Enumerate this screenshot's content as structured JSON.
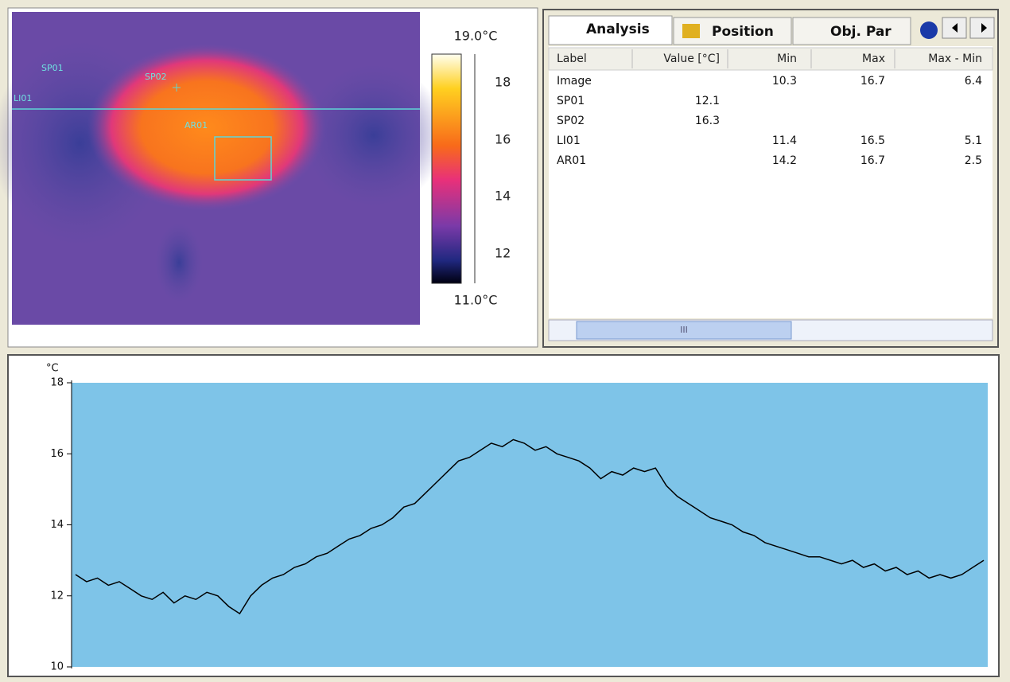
{
  "image_panel": {
    "spots": [
      "SP01",
      "SP02",
      "LI01",
      "AR01"
    ],
    "colorbar": {
      "max_label": "19.0°C",
      "min_label": "11.0°C",
      "ticks": [
        "18",
        "16",
        "14",
        "12"
      ]
    }
  },
  "tabs": [
    "Analysis",
    "Position",
    "Obj. Par"
  ],
  "table": {
    "headers": [
      "Label",
      "Value [°C]",
      "Min",
      "Max",
      "Max - Min"
    ],
    "rows": [
      [
        "Image",
        "",
        "10.3",
        "16.7",
        "6.4"
      ],
      [
        "SP01",
        "12.1",
        "",
        "",
        ""
      ],
      [
        "SP02",
        "16.3",
        "",
        "",
        ""
      ],
      [
        "LI01",
        "",
        "11.4",
        "16.5",
        "5.1"
      ],
      [
        "AR01",
        "",
        "14.2",
        "16.7",
        "2.5"
      ]
    ]
  },
  "scrollbar": "III",
  "chart_data": {
    "type": "line",
    "y_label": "°C",
    "color": "#000000",
    "background": "#7ec4e8",
    "ylim": [
      10,
      18
    ],
    "yticks": [
      10,
      12,
      14,
      16,
      18
    ],
    "values": [
      12.6,
      12.4,
      12.5,
      12.3,
      12.4,
      12.2,
      12.0,
      11.9,
      12.1,
      11.8,
      12.0,
      11.9,
      12.1,
      12.0,
      11.7,
      11.5,
      12.0,
      12.3,
      12.5,
      12.6,
      12.8,
      12.9,
      13.1,
      13.2,
      13.4,
      13.6,
      13.7,
      13.9,
      14.0,
      14.2,
      14.5,
      14.6,
      14.9,
      15.2,
      15.5,
      15.8,
      15.9,
      16.1,
      16.3,
      16.2,
      16.4,
      16.3,
      16.1,
      16.2,
      16.0,
      15.9,
      15.8,
      15.6,
      15.3,
      15.5,
      15.4,
      15.6,
      15.5,
      15.6,
      15.1,
      14.8,
      14.6,
      14.4,
      14.2,
      14.1,
      14.0,
      13.8,
      13.7,
      13.5,
      13.4,
      13.3,
      13.2,
      13.1,
      13.1,
      13.0,
      12.9,
      13.0,
      12.8,
      12.9,
      12.7,
      12.8,
      12.6,
      12.7,
      12.5,
      12.6,
      12.5,
      12.6,
      12.8,
      13.0
    ]
  }
}
